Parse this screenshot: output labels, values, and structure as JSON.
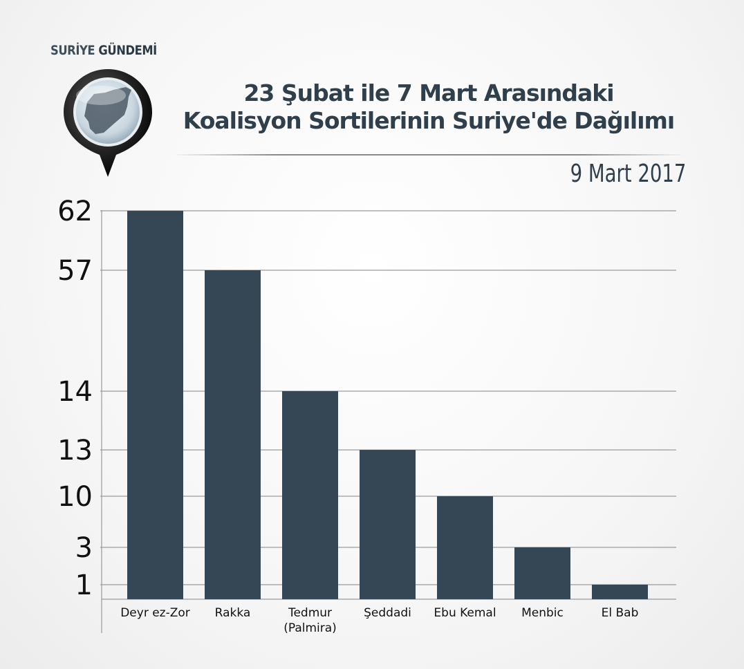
{
  "brand": {
    "part1": "SURİYE",
    "part2": "GÜNDEMİ"
  },
  "title": {
    "line1": "23 Şubat ile 7 Mart Arasındaki",
    "line2": "Koalisyon Sortilerinin Suriye'de Dağılımı"
  },
  "date": "9 Mart 2017",
  "colors": {
    "bar": "#354754",
    "text": "#2f3f4c",
    "grid": "#9a9a9a"
  },
  "chart_data": {
    "type": "bar",
    "title": "23 Şubat ile 7 Mart Arasındaki Koalisyon Sortilerinin Suriye'de Dağılımı",
    "categories": [
      "Deyr ez-Zor",
      "Rakka",
      "Tedmur (Palmira)",
      "Şeddadi",
      "Ebu Kemal",
      "Menbic",
      "El Bab"
    ],
    "category_lines": [
      [
        "Deyr ez-Zor"
      ],
      [
        "Rakka"
      ],
      [
        "Tedmur",
        "(Palmira)"
      ],
      [
        "Şeddadi"
      ],
      [
        "Ebu Kemal"
      ],
      [
        "Menbic"
      ],
      [
        "El Bab"
      ]
    ],
    "values": [
      62,
      57,
      14,
      13,
      10,
      3,
      1
    ],
    "ytick_labels": [
      "62",
      "57",
      "14",
      "13",
      "10",
      "3",
      "1"
    ],
    "scale": "non-linear",
    "grid": "horizontal lines at each value",
    "xlabel": "",
    "ylabel": ""
  }
}
